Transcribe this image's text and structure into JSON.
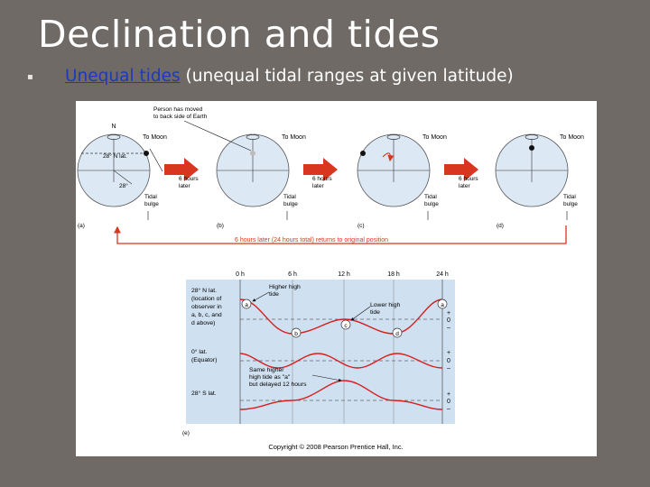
{
  "slide": {
    "title": "Declination and tides",
    "bullet_highlight": "Unequal tides",
    "bullet_rest": " (unequal tidal ranges at given latitude)"
  },
  "figure": {
    "top": {
      "north_label": "N",
      "lat_label": "28° N lat.",
      "lat_angle": "28°",
      "person_moved": [
        "Person has moved",
        "to back side of Earth"
      ],
      "to_moon": "To Moon",
      "tidal_bulge": [
        "Tidal",
        "bulge"
      ],
      "six_hours_later": [
        "6 hours",
        "later"
      ],
      "panel_labels": [
        "(a)",
        "(b)",
        "(c)",
        "(d)"
      ],
      "return_note": "6 hours later (24 hours total) returns to original position"
    },
    "bottom": {
      "time_labels": [
        "0 h",
        "6 h",
        "12 h",
        "18 h",
        "24 h"
      ],
      "observer_label": [
        "28° N lat.",
        "(location of",
        "observer in",
        "a, b, c, and",
        "d above)"
      ],
      "equator_label": [
        "0° lat.",
        "(Equator)"
      ],
      "south_label": "28° S lat.",
      "higher_high_tide": [
        "Higher high",
        "tide"
      ],
      "lower_high_tide": [
        "Lower high",
        "tide"
      ],
      "same_higher": [
        "Same higher",
        "high tide as \"a\"",
        "but delayed 12 hours"
      ],
      "point_labels": [
        "a",
        "b",
        "c",
        "d",
        "a"
      ],
      "axis_marks": [
        "+",
        "0",
        "–"
      ],
      "panel_label": "(e)"
    },
    "copyright": "Copyright © 2008 Pearson Prentice Hall, Inc."
  },
  "colors": {
    "background": "#6f6a66",
    "bulge": "#8fb2d8",
    "earth": "#dce9f5",
    "arrow": "#d8361e",
    "graph_bg": "#cfe0f0",
    "curve": "#d81e1e"
  }
}
